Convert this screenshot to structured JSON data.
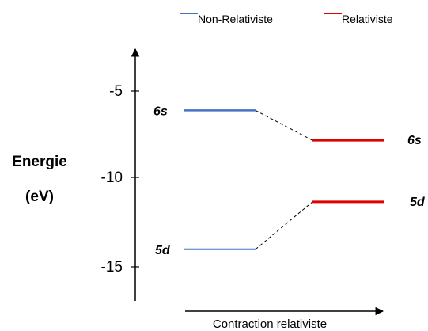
{
  "legend": {
    "non_relativistic": {
      "label": "Non-Relativiste",
      "color": "#4472C4"
    },
    "relativistic": {
      "label": "Relativiste",
      "color": "#E00000"
    }
  },
  "y_axis": {
    "label_line1": "Energie",
    "label_line2": "(eV)",
    "ticks": [
      "-5",
      "-10",
      "-15"
    ],
    "range": [
      -17.5,
      -3.5
    ]
  },
  "x_axis": {
    "label": "Contraction relativiste"
  },
  "levels": {
    "non_relativistic": [
      {
        "label": "6s",
        "energy": -6.1
      },
      {
        "label": "5d",
        "energy": -14.0
      }
    ],
    "relativistic": [
      {
        "label": "6s",
        "energy": -7.8
      },
      {
        "label": "5d",
        "energy": -11.3
      }
    ]
  }
}
